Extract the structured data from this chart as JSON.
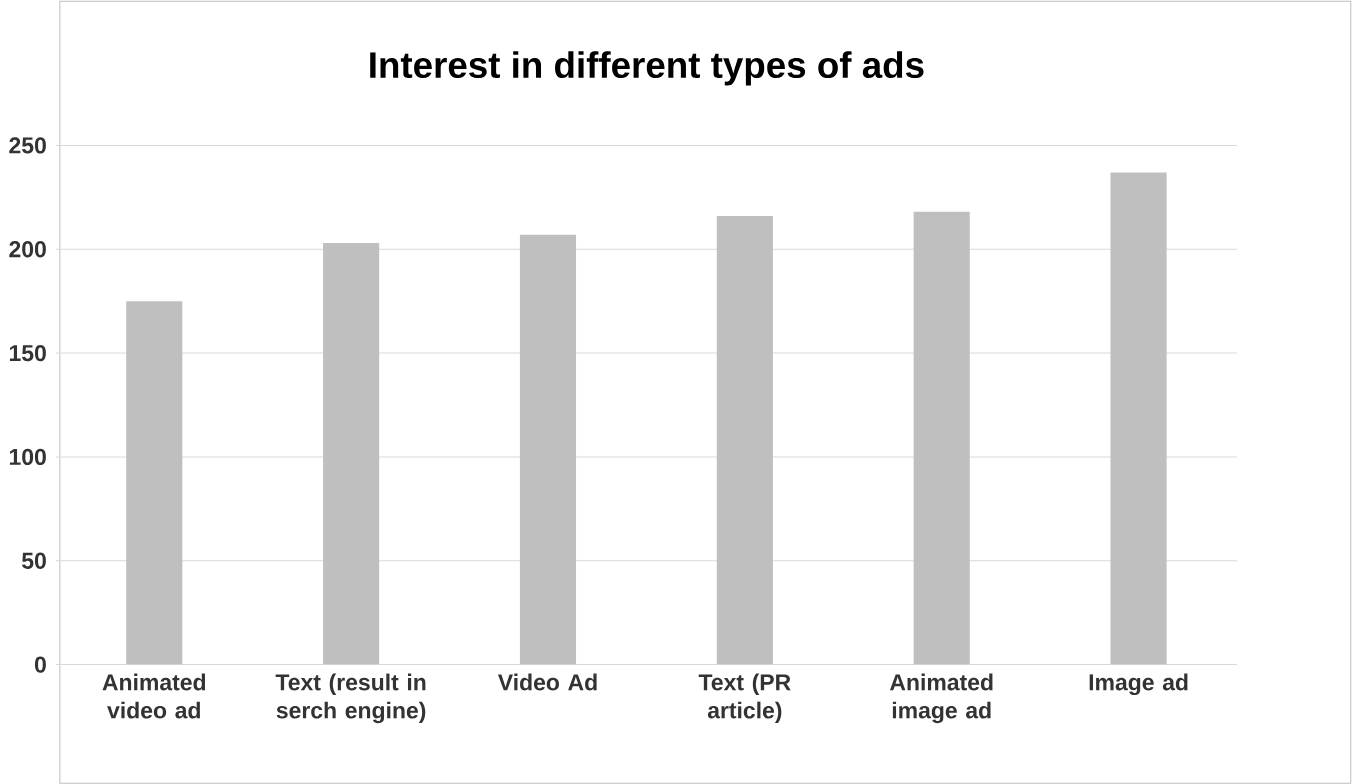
{
  "chart_data": {
    "type": "bar",
    "title": "Interest in different types of ads",
    "categories": [
      "Animated video ad",
      "Text (result in serch engine)",
      "Video Ad",
      "Text (PR article)",
      "Animated image ad",
      "Image ad"
    ],
    "values": [
      175,
      203,
      207,
      216,
      218,
      237
    ],
    "color": "#bfbfbf",
    "ylim": [
      0,
      250
    ],
    "yticks": [
      0,
      50,
      100,
      150,
      200,
      250
    ],
    "grid": "y"
  }
}
